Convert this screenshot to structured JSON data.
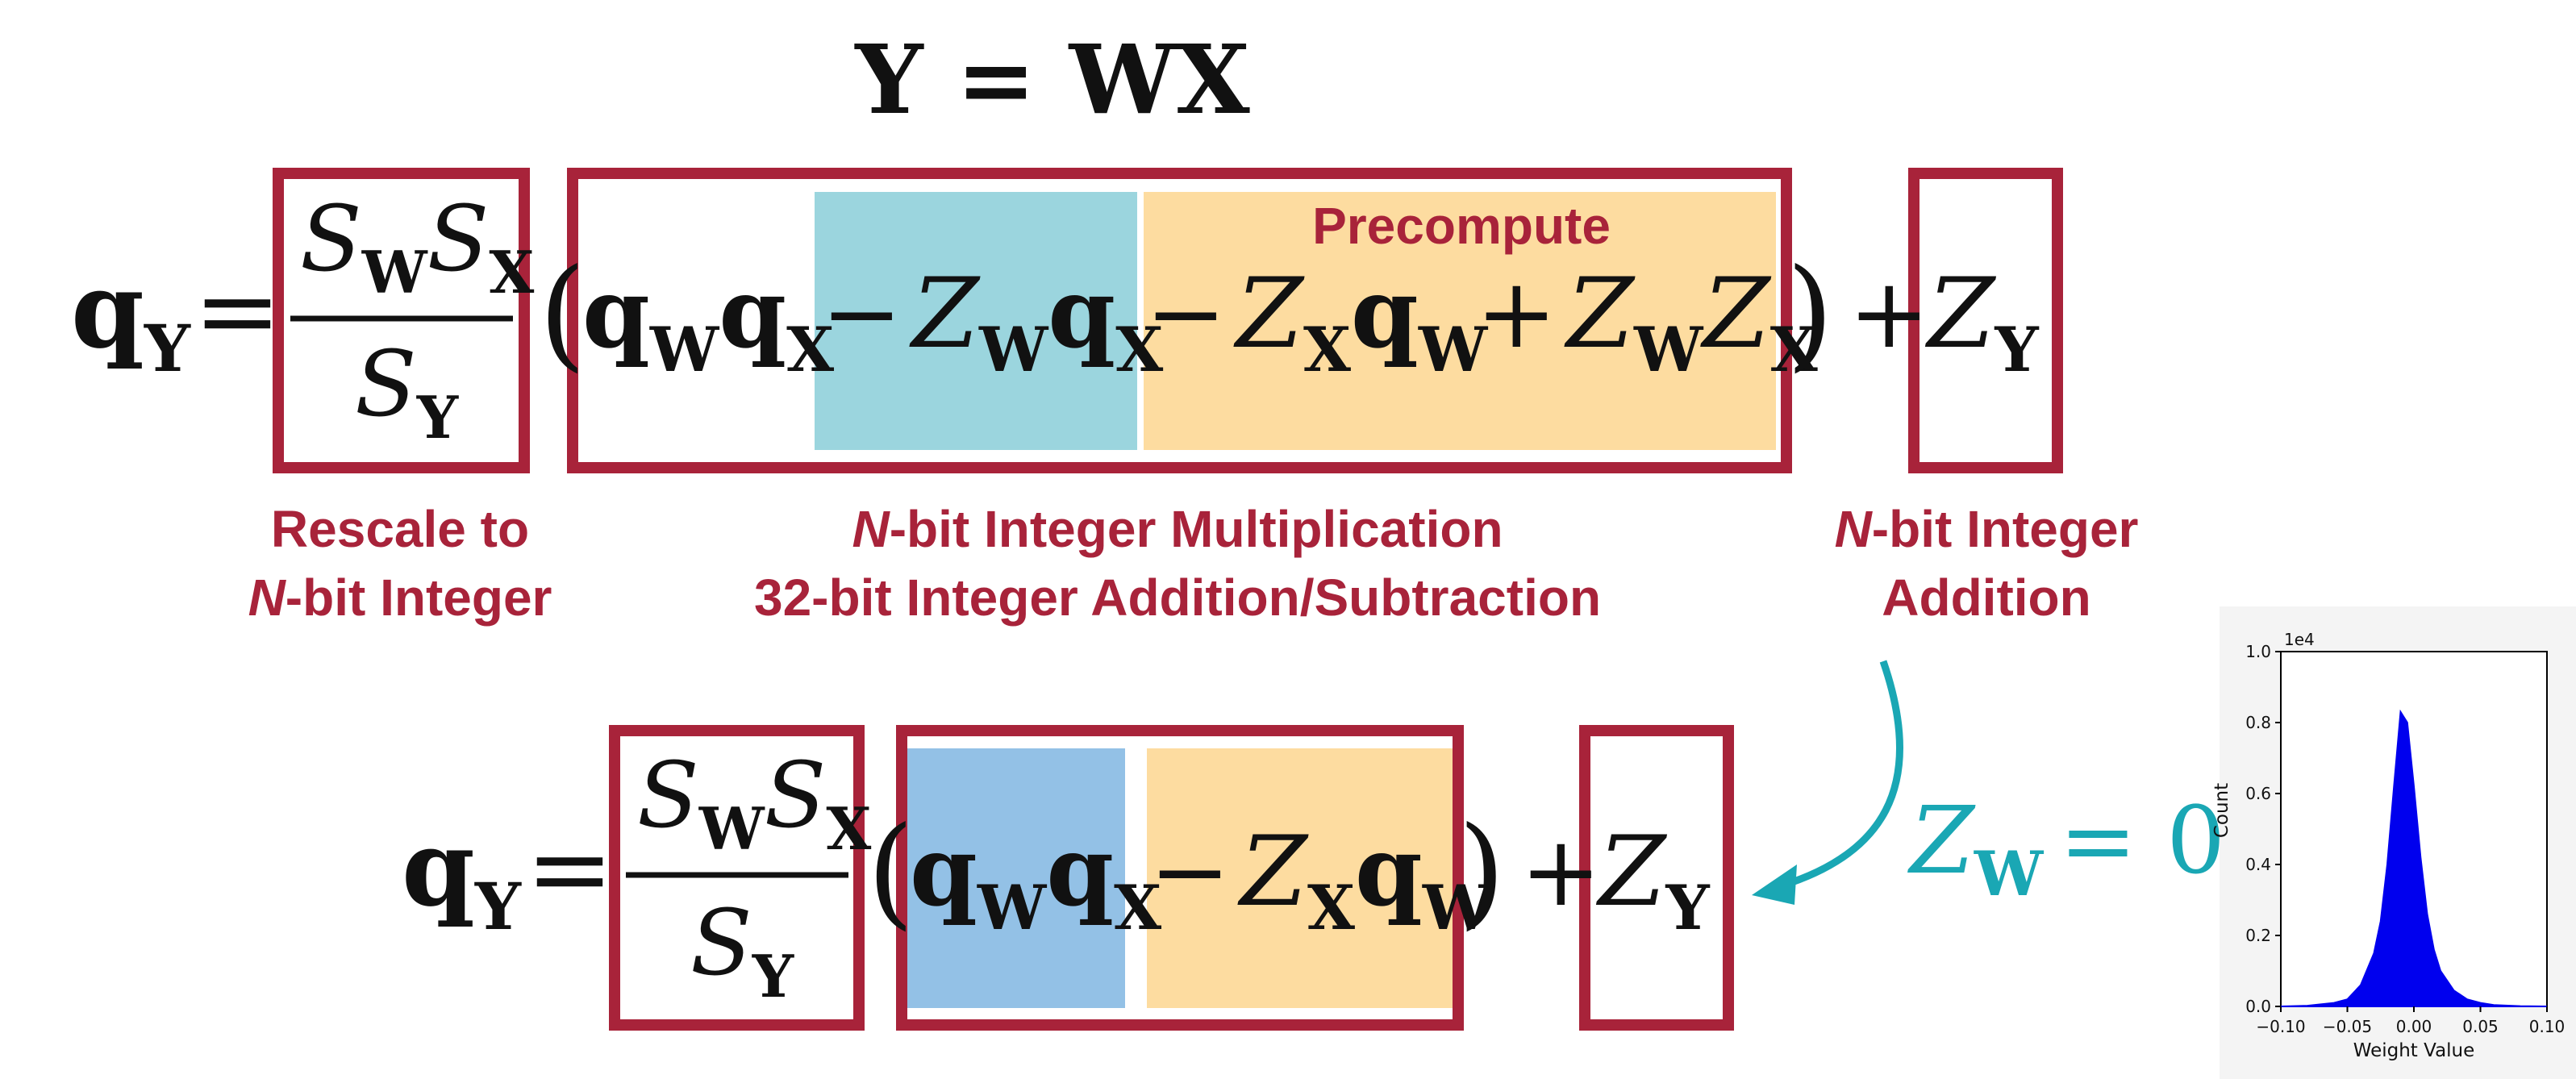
{
  "colors": {
    "box_border": "#a8233a",
    "label_text": "#a8233a",
    "teal_fill": "#9bd5de",
    "blue_fill": "#93c1e6",
    "orange_fill": "#fddca0",
    "arrow": "#1aa7b4",
    "zw_eq": "#1aa7b4",
    "hist_fill": "#0000ee",
    "text": "#111111"
  },
  "top_equation": {
    "text": "Y = WX"
  },
  "eq1": {
    "qY_q": "q",
    "qY_sub": "Y",
    "equals": "=",
    "frac_num_S1": "S",
    "frac_num_sub1": "W",
    "frac_num_S2": "S",
    "frac_num_sub2": "X",
    "frac_den_S": "S",
    "frac_den_sub": "Y",
    "lparen": "(",
    "rparen": ")",
    "term1": {
      "q1": "q",
      "s1": "W",
      "q2": "q",
      "s2": "X"
    },
    "term2": {
      "op": "−",
      "z": "Z",
      "zs": "W",
      "q": "q",
      "qs": "X"
    },
    "term3": {
      "op": "−",
      "z": "Z",
      "zs": "X",
      "q": "q",
      "qs": "W"
    },
    "term4": {
      "op": "+",
      "z1": "Z",
      "z1s": "W",
      "z2": "Z",
      "z2s": "X"
    },
    "plus": "+",
    "zy": "Z",
    "zy_sub": "Y",
    "precompute_label": "Precompute"
  },
  "labels": {
    "rescale_line1": "Rescale to",
    "rescale_line2_n": "N",
    "rescale_line2_rest": "-bit Integer",
    "mult_line1_n": "N",
    "mult_line1_rest": "-bit Integer Multiplication",
    "mult_line2": "32-bit Integer Addition/Subtraction",
    "add_line1_n": "N",
    "add_line1_rest": "-bit Integer",
    "add_line2": "Addition"
  },
  "eq2": {
    "qY_q": "q",
    "qY_sub": "Y",
    "equals": "=",
    "frac_num_S1": "S",
    "frac_num_sub1": "W",
    "frac_num_S2": "S",
    "frac_num_sub2": "X",
    "frac_den_S": "S",
    "frac_den_sub": "Y",
    "lparen": "(",
    "rparen": ")",
    "term1": {
      "q1": "q",
      "s1": "W",
      "q2": "q",
      "s2": "X"
    },
    "term2": {
      "op": "−",
      "z": "Z",
      "zs": "X",
      "q": "q",
      "qs": "W"
    },
    "plus": "+",
    "zy": "Z",
    "zy_sub": "Y"
  },
  "zw_note": {
    "z": "Z",
    "sub": "W",
    "rest": "= 0"
  },
  "chart_data": {
    "type": "area",
    "xlabel": "Weight Value",
    "ylabel": "Count",
    "scale_label": "1e4",
    "xlim": [
      -0.1,
      0.1
    ],
    "ylim": [
      0.0,
      1.0
    ],
    "x_ticks": [
      "-0.10",
      "-0.05",
      "0.00",
      "0.05",
      "0.10"
    ],
    "y_ticks": [
      "0.0",
      "0.2",
      "0.4",
      "0.6",
      "0.8",
      "1.0"
    ],
    "x": [
      -0.1,
      -0.08,
      -0.06,
      -0.05,
      -0.04,
      -0.03,
      -0.025,
      -0.02,
      -0.015,
      -0.01,
      -0.005,
      0.0,
      0.005,
      0.01,
      0.015,
      0.02,
      0.03,
      0.04,
      0.05,
      0.06,
      0.08,
      0.1
    ],
    "values": [
      0.0,
      0.002,
      0.01,
      0.02,
      0.06,
      0.15,
      0.24,
      0.4,
      0.62,
      0.83,
      0.8,
      0.62,
      0.42,
      0.26,
      0.16,
      0.1,
      0.045,
      0.02,
      0.01,
      0.004,
      0.001,
      0.0
    ]
  }
}
